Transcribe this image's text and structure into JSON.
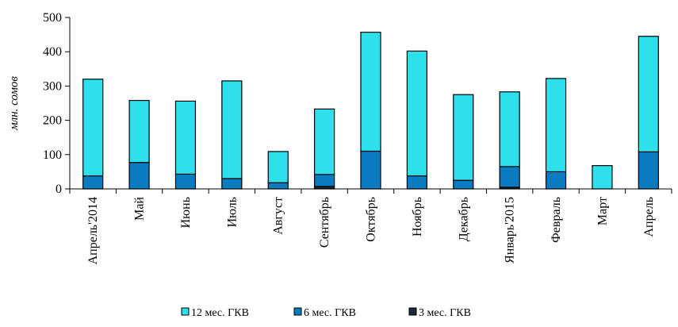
{
  "chart_data": {
    "type": "bar",
    "stacked": true,
    "ylabel": "млн. сомов",
    "ylim": [
      0,
      500
    ],
    "yticks": [
      0,
      100,
      200,
      300,
      400,
      500
    ],
    "categories": [
      "Апрель'2014",
      "Май",
      "Июнь",
      "Июль",
      "Август",
      "Сентябрь",
      "Октябрь",
      "Ноябрь",
      "Декабрь",
      "Январь'2015",
      "Февраль",
      "Март",
      "Апрель"
    ],
    "series": [
      {
        "name": "3 мес. ГКВ",
        "color": "#1a2a3a",
        "values": [
          0,
          0,
          0,
          0,
          0,
          7,
          0,
          0,
          0,
          5,
          0,
          0,
          0
        ]
      },
      {
        "name": "6 мес. ГКВ",
        "color": "#0b7bc1",
        "values": [
          38,
          77,
          43,
          30,
          18,
          35,
          110,
          38,
          25,
          60,
          50,
          0,
          108
        ]
      },
      {
        "name": "12 мес. ГКВ",
        "color": "#2de0ec",
        "values": [
          282,
          181,
          213,
          285,
          91,
          191,
          347,
          364,
          250,
          218,
          272,
          68,
          337
        ]
      }
    ],
    "legend_order": [
      "12 мес. ГКВ",
      "6 мес. ГКВ",
      "3 мес. ГКВ"
    ],
    "legend_position": "bottom",
    "grid": false
  }
}
